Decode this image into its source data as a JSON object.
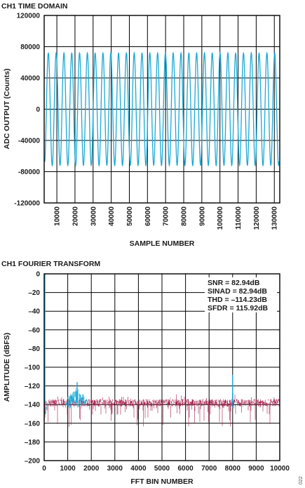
{
  "figure_id": "022",
  "chart_data": [
    {
      "type": "line",
      "title": "CH1 TIME DOMAIN",
      "xlabel": "SAMPLE NUMBER",
      "ylabel": "ADC OUTPUT (Counts)",
      "xlim": [
        3000,
        133000
      ],
      "ylim": [
        -120000,
        120000
      ],
      "xticks": [
        10000,
        20000,
        30000,
        40000,
        50000,
        60000,
        70000,
        80000,
        90000,
        100000,
        110000,
        120000,
        130000
      ],
      "xtick_labels": [
        "10000",
        "20000",
        "30000",
        "40000",
        "50000",
        "60000",
        "70000",
        "80000",
        "90000",
        "100000",
        "110000",
        "120000",
        "130000"
      ],
      "yticks": [
        120000,
        80000,
        40000,
        0,
        -40000,
        -80000,
        -120000
      ],
      "ytick_labels": [
        "120000",
        "80000",
        "40000",
        "0",
        "-40000",
        "-80000",
        "-120000"
      ],
      "grid": true,
      "series": [
        {
          "color": "#1ba9d6",
          "waveform": "sine",
          "amplitude": 72000,
          "cycles_displayed": 30
        }
      ]
    },
    {
      "type": "line",
      "title": "CH1 FOURIER TRANSFORM",
      "xlabel": "FFT BIN NUMBER",
      "ylabel": "AMPLITUDE (dBFS)",
      "xlim": [
        0,
        10000
      ],
      "ylim": [
        -200,
        0
      ],
      "xticks": [
        0,
        1000,
        2000,
        3000,
        4000,
        5000,
        6000,
        7000,
        8000,
        9000,
        10000
      ],
      "xtick_labels": [
        "0",
        "1000",
        "2000",
        "3000",
        "4000",
        "5000",
        "6000",
        "7000",
        "8000",
        "9000",
        "10000"
      ],
      "yticks": [
        0,
        -20,
        -40,
        -60,
        -80,
        -100,
        -120,
        -140,
        -160,
        -180,
        -200
      ],
      "ytick_labels": [
        "0",
        "–20",
        "–40",
        "–60",
        "–80",
        "–100",
        "–120",
        "–140",
        "–160",
        "–180",
        "–200"
      ],
      "grid": true,
      "noise_floor_dbfs": -138,
      "series": [
        {
          "color": "#a51c4a",
          "description_of_content": "noise floor",
          "x_range": [
            0,
            10000
          ],
          "center": -138,
          "spread": 4
        },
        {
          "color": "#1ba9d6",
          "peaks": [
            {
              "x": 0,
              "y": 0
            },
            {
              "x": 1400,
              "y": -116
            },
            {
              "x": 8000,
              "y": -108
            }
          ],
          "bands": [
            {
              "x_range": [
                0,
                100
              ],
              "center": -140
            },
            {
              "x_range": [
                900,
                1850
              ],
              "center": -130
            },
            {
              "x_range": [
                7950,
                8050
              ],
              "center": -132
            }
          ]
        }
      ],
      "annotations": [
        "SNR = 82.94dB",
        "SINAD = 82.94dB",
        "THD = –114.23dB",
        "SFDR = 115.92dB"
      ]
    }
  ]
}
